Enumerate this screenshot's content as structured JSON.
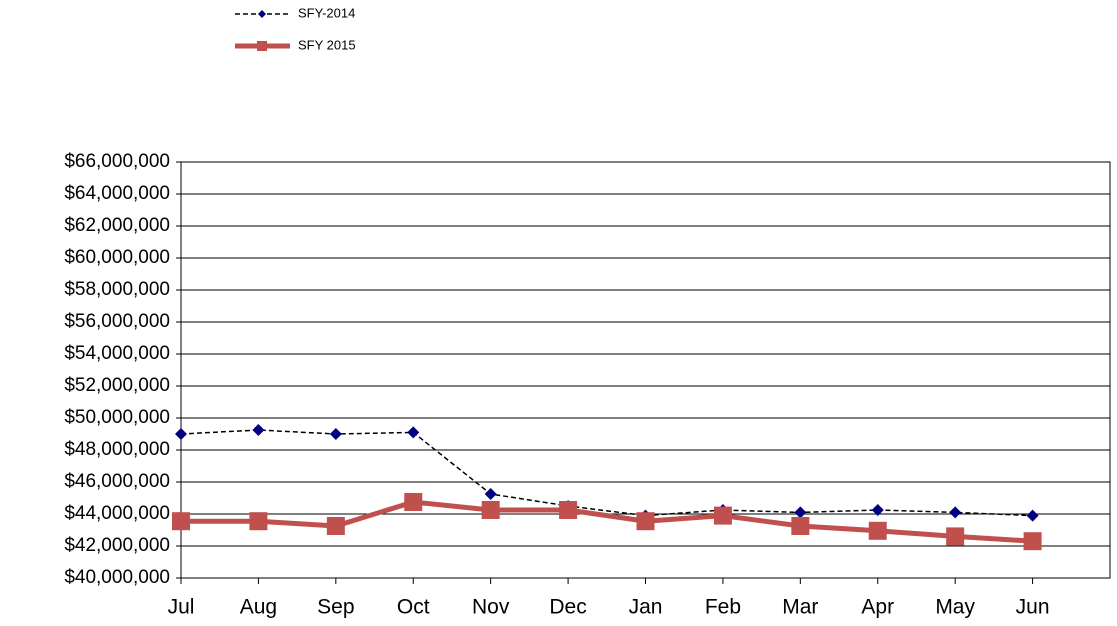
{
  "chart_data": {
    "type": "line",
    "categories": [
      "Jul",
      "Aug",
      "Sep",
      "Oct",
      "Nov",
      "Dec",
      "Jan",
      "Feb",
      "Mar",
      "Apr",
      "May",
      "Jun"
    ],
    "series": [
      {
        "name": "SFY-2014",
        "color": "#000080",
        "line_color": "#000000",
        "dashed": true,
        "line_width": 1.5,
        "marker": "diamond",
        "values": [
          49000000,
          49250000,
          49000000,
          49100000,
          45250000,
          44500000,
          43900000,
          44250000,
          44100000,
          44250000,
          44100000,
          43900000
        ]
      },
      {
        "name": "SFY 2015",
        "color": "#c0504d",
        "line_color": "#c0504d",
        "dashed": false,
        "line_width": 5,
        "marker": "square",
        "values": [
          43550000,
          43550000,
          43250000,
          44750000,
          44250000,
          44250000,
          43550000,
          43900000,
          43250000,
          42950000,
          42600000,
          42300000
        ]
      }
    ],
    "ylim": [
      40000000,
      66000000
    ],
    "yticks": [
      {
        "value": 40000000,
        "label": "$40,000,000"
      },
      {
        "value": 42000000,
        "label": "$42,000,000"
      },
      {
        "value": 44000000,
        "label": "$44,000,000"
      },
      {
        "value": 46000000,
        "label": "$46,000,000"
      },
      {
        "value": 48000000,
        "label": "$48,000,000"
      },
      {
        "value": 50000000,
        "label": "$50,000,000"
      },
      {
        "value": 52000000,
        "label": "$52,000,000"
      },
      {
        "value": 54000000,
        "label": "$54,000,000"
      },
      {
        "value": 56000000,
        "label": "$56,000,000"
      },
      {
        "value": 58000000,
        "label": "$58,000,000"
      },
      {
        "value": 60000000,
        "label": "$60,000,000"
      },
      {
        "value": 62000000,
        "label": "$62,000,000"
      },
      {
        "value": 64000000,
        "label": "$64,000,000"
      },
      {
        "value": 66000000,
        "label": "$66,000,000"
      }
    ],
    "grid": true,
    "legend": "top-left"
  }
}
